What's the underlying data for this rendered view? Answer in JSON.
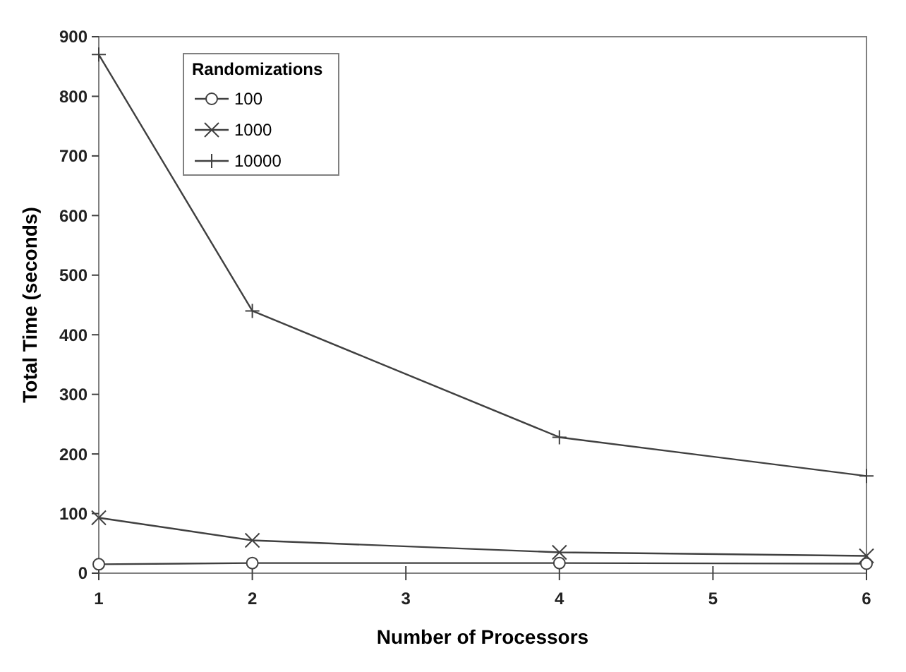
{
  "chart_data": {
    "type": "line",
    "xlabel": "Number of Processors",
    "ylabel": "Total Time (seconds)",
    "legend_title": "Randomizations",
    "legend": "top left",
    "grid": false,
    "line_style": "solid",
    "x": [
      1,
      2,
      4,
      6
    ],
    "xlim": [
      1,
      6
    ],
    "xticks": [
      1,
      2,
      3,
      4,
      5,
      6
    ],
    "ylim": [
      0,
      900
    ],
    "yticks": [
      0,
      100,
      200,
      300,
      400,
      500,
      600,
      700,
      800,
      900
    ],
    "series": [
      {
        "name": "100",
        "color": "#404040",
        "marker": "circle",
        "values": [
          15,
          17,
          17,
          16
        ]
      },
      {
        "name": "1000",
        "color": "#404040",
        "marker": "cross",
        "values": [
          93,
          55,
          35,
          29
        ]
      },
      {
        "name": "10000",
        "color": "#404040",
        "marker": "plus",
        "values": [
          870,
          440,
          228,
          163
        ]
      }
    ]
  }
}
